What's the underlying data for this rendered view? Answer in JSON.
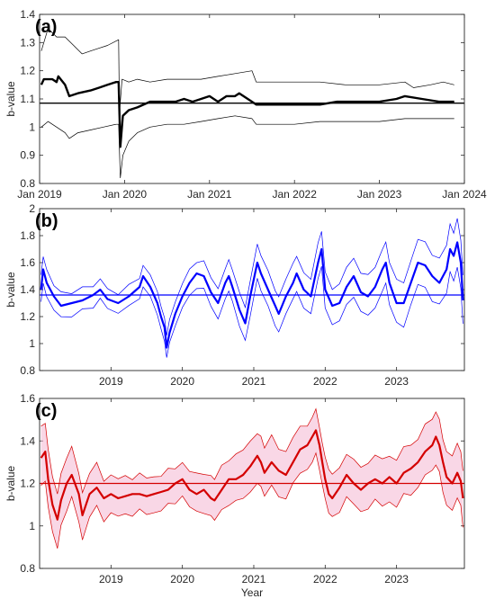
{
  "chart_data": [
    {
      "type": "line",
      "panel_label": "(a)",
      "ylabel": "b-value",
      "xlabel": "",
      "x_unit": "year",
      "xlim": [
        2019.0,
        2024.0
      ],
      "ylim": [
        0.8,
        1.4
      ],
      "y_ticks": [
        "0.8",
        "0.9",
        "1",
        "1.1",
        "1.2",
        "1.3",
        "1.4"
      ],
      "x_ticks": [
        {
          "label": "Jan 2019",
          "x": 2019.0
        },
        {
          "label": "Jan 2020",
          "x": 2020.0
        },
        {
          "label": "Jan 2021",
          "x": 2021.0
        },
        {
          "label": "Jan 2022",
          "x": 2022.0
        },
        {
          "label": "Jan 2023",
          "x": 2023.0
        },
        {
          "label": "Jan 2024",
          "x": 2024.0
        }
      ],
      "reference_line": 1.085,
      "color": "#000000",
      "series": [
        {
          "role": "upper",
          "points": [
            [
              2019.02,
              1.27
            ],
            [
              2019.1,
              1.35
            ],
            [
              2019.2,
              1.32
            ],
            [
              2019.3,
              1.32
            ],
            [
              2019.4,
              1.29
            ],
            [
              2019.5,
              1.26
            ],
            [
              2019.6,
              1.27
            ],
            [
              2019.7,
              1.28
            ],
            [
              2019.8,
              1.29
            ],
            [
              2019.93,
              1.31
            ],
            [
              2019.94,
              1.05
            ],
            [
              2019.97,
              1.17
            ],
            [
              2020.05,
              1.16
            ],
            [
              2020.15,
              1.17
            ],
            [
              2020.3,
              1.16
            ],
            [
              2020.5,
              1.17
            ],
            [
              2020.7,
              1.17
            ],
            [
              2020.9,
              1.17
            ],
            [
              2021.1,
              1.18
            ],
            [
              2021.3,
              1.19
            ],
            [
              2021.5,
              1.2
            ],
            [
              2021.55,
              1.16
            ],
            [
              2021.8,
              1.16
            ],
            [
              2022.0,
              1.16
            ],
            [
              2022.3,
              1.16
            ],
            [
              2022.6,
              1.15
            ],
            [
              2023.0,
              1.15
            ],
            [
              2023.3,
              1.16
            ],
            [
              2023.4,
              1.14
            ],
            [
              2023.6,
              1.15
            ],
            [
              2023.75,
              1.16
            ],
            [
              2023.88,
              1.15
            ]
          ]
        },
        {
          "role": "estimate",
          "points": [
            [
              2019.02,
              1.15
            ],
            [
              2019.05,
              1.17
            ],
            [
              2019.15,
              1.17
            ],
            [
              2019.2,
              1.16
            ],
            [
              2019.22,
              1.18
            ],
            [
              2019.3,
              1.15
            ],
            [
              2019.35,
              1.11
            ],
            [
              2019.45,
              1.12
            ],
            [
              2019.6,
              1.13
            ],
            [
              2019.7,
              1.14
            ],
            [
              2019.8,
              1.15
            ],
            [
              2019.9,
              1.16
            ],
            [
              2019.93,
              1.16
            ],
            [
              2019.95,
              0.93
            ],
            [
              2019.98,
              1.04
            ],
            [
              2020.05,
              1.06
            ],
            [
              2020.15,
              1.07
            ],
            [
              2020.3,
              1.09
            ],
            [
              2020.5,
              1.09
            ],
            [
              2020.6,
              1.09
            ],
            [
              2020.7,
              1.1
            ],
            [
              2020.8,
              1.09
            ],
            [
              2020.9,
              1.1
            ],
            [
              2021.0,
              1.11
            ],
            [
              2021.05,
              1.1
            ],
            [
              2021.1,
              1.09
            ],
            [
              2021.2,
              1.11
            ],
            [
              2021.3,
              1.11
            ],
            [
              2021.35,
              1.12
            ],
            [
              2021.45,
              1.1
            ],
            [
              2021.55,
              1.08
            ],
            [
              2021.6,
              1.08
            ],
            [
              2021.8,
              1.08
            ],
            [
              2022.0,
              1.08
            ],
            [
              2022.3,
              1.08
            ],
            [
              2022.5,
              1.09
            ],
            [
              2022.7,
              1.09
            ],
            [
              2023.0,
              1.09
            ],
            [
              2023.2,
              1.1
            ],
            [
              2023.3,
              1.11
            ],
            [
              2023.5,
              1.1
            ],
            [
              2023.7,
              1.09
            ],
            [
              2023.8,
              1.09
            ],
            [
              2023.88,
              1.09
            ]
          ]
        },
        {
          "role": "lower",
          "points": [
            [
              2019.02,
              1.0
            ],
            [
              2019.1,
              1.02
            ],
            [
              2019.2,
              1.0
            ],
            [
              2019.3,
              0.98
            ],
            [
              2019.35,
              0.96
            ],
            [
              2019.45,
              0.98
            ],
            [
              2019.6,
              0.99
            ],
            [
              2019.75,
              1.0
            ],
            [
              2019.9,
              1.01
            ],
            [
              2019.93,
              1.01
            ],
            [
              2019.95,
              0.82
            ],
            [
              2019.98,
              0.9
            ],
            [
              2020.05,
              0.95
            ],
            [
              2020.15,
              0.98
            ],
            [
              2020.3,
              1.0
            ],
            [
              2020.5,
              1.01
            ],
            [
              2020.7,
              1.01
            ],
            [
              2020.9,
              1.02
            ],
            [
              2021.1,
              1.03
            ],
            [
              2021.3,
              1.04
            ],
            [
              2021.5,
              1.03
            ],
            [
              2021.55,
              1.01
            ],
            [
              2021.8,
              1.01
            ],
            [
              2022.0,
              1.01
            ],
            [
              2022.3,
              1.02
            ],
            [
              2022.6,
              1.02
            ],
            [
              2023.0,
              1.02
            ],
            [
              2023.3,
              1.03
            ],
            [
              2023.6,
              1.03
            ],
            [
              2023.75,
              1.03
            ],
            [
              2023.88,
              1.03
            ]
          ]
        }
      ]
    },
    {
      "type": "line",
      "panel_label": "(b)",
      "ylabel": "b-value",
      "xlabel": "",
      "x_unit": "year",
      "xlim": [
        2018.0,
        2023.95
      ],
      "ylim": [
        0.8,
        2.0
      ],
      "y_ticks": [
        "0.8",
        "1",
        "1.2",
        "1.4",
        "1.6",
        "1.8",
        "2"
      ],
      "x_ticks": [
        {
          "label": "2019",
          "x": 2019.0
        },
        {
          "label": "2020",
          "x": 2020.0
        },
        {
          "label": "2021",
          "x": 2021.0
        },
        {
          "label": "2022",
          "x": 2022.0
        },
        {
          "label": "2023",
          "x": 2023.0
        }
      ],
      "reference_line": 1.36,
      "color": "#0000ff",
      "band_halfwidth": [
        [
          2018.0,
          0.1
        ],
        [
          2019.0,
          0.07
        ],
        [
          2020.0,
          0.09
        ],
        [
          2021.0,
          0.13
        ],
        [
          2022.0,
          0.13
        ],
        [
          2023.0,
          0.16
        ],
        [
          2023.95,
          0.18
        ]
      ],
      "estimate": [
        [
          2018.02,
          1.4
        ],
        [
          2018.05,
          1.55
        ],
        [
          2018.1,
          1.45
        ],
        [
          2018.2,
          1.35
        ],
        [
          2018.3,
          1.28
        ],
        [
          2018.45,
          1.3
        ],
        [
          2018.6,
          1.32
        ],
        [
          2018.75,
          1.36
        ],
        [
          2018.85,
          1.4
        ],
        [
          2018.95,
          1.33
        ],
        [
          2019.1,
          1.3
        ],
        [
          2019.25,
          1.35
        ],
        [
          2019.4,
          1.42
        ],
        [
          2019.45,
          1.5
        ],
        [
          2019.55,
          1.42
        ],
        [
          2019.65,
          1.3
        ],
        [
          2019.7,
          1.2
        ],
        [
          2019.75,
          1.12
        ],
        [
          2019.78,
          0.97
        ],
        [
          2019.82,
          1.08
        ],
        [
          2019.9,
          1.22
        ],
        [
          2020.0,
          1.35
        ],
        [
          2020.1,
          1.45
        ],
        [
          2020.2,
          1.52
        ],
        [
          2020.3,
          1.5
        ],
        [
          2020.4,
          1.38
        ],
        [
          2020.5,
          1.3
        ],
        [
          2020.6,
          1.45
        ],
        [
          2020.65,
          1.5
        ],
        [
          2020.7,
          1.42
        ],
        [
          2020.8,
          1.25
        ],
        [
          2020.88,
          1.15
        ],
        [
          2020.95,
          1.35
        ],
        [
          2021.05,
          1.6
        ],
        [
          2021.1,
          1.52
        ],
        [
          2021.2,
          1.4
        ],
        [
          2021.3,
          1.28
        ],
        [
          2021.35,
          1.22
        ],
        [
          2021.45,
          1.35
        ],
        [
          2021.55,
          1.45
        ],
        [
          2021.6,
          1.52
        ],
        [
          2021.7,
          1.4
        ],
        [
          2021.8,
          1.35
        ],
        [
          2021.9,
          1.6
        ],
        [
          2021.95,
          1.7
        ],
        [
          2022.0,
          1.4
        ],
        [
          2022.1,
          1.28
        ],
        [
          2022.2,
          1.3
        ],
        [
          2022.3,
          1.42
        ],
        [
          2022.4,
          1.5
        ],
        [
          2022.5,
          1.38
        ],
        [
          2022.6,
          1.35
        ],
        [
          2022.7,
          1.42
        ],
        [
          2022.8,
          1.55
        ],
        [
          2022.85,
          1.6
        ],
        [
          2022.9,
          1.45
        ],
        [
          2023.0,
          1.3
        ],
        [
          2023.1,
          1.3
        ],
        [
          2023.2,
          1.45
        ],
        [
          2023.3,
          1.6
        ],
        [
          2023.4,
          1.58
        ],
        [
          2023.5,
          1.5
        ],
        [
          2023.6,
          1.45
        ],
        [
          2023.7,
          1.55
        ],
        [
          2023.75,
          1.7
        ],
        [
          2023.8,
          1.65
        ],
        [
          2023.85,
          1.75
        ],
        [
          2023.9,
          1.6
        ],
        [
          2023.93,
          1.32
        ]
      ]
    },
    {
      "type": "line",
      "panel_label": "(c)",
      "ylabel": "b-value",
      "xlabel": "Year",
      "x_unit": "year",
      "xlim": [
        2018.0,
        2023.95
      ],
      "ylim": [
        0.8,
        1.6
      ],
      "y_ticks": [
        "0.8",
        "1",
        "1.2",
        "1.4",
        "1.6"
      ],
      "x_ticks": [
        {
          "label": "2019",
          "x": 2019.0
        },
        {
          "label": "2020",
          "x": 2020.0
        },
        {
          "label": "2021",
          "x": 2021.0
        },
        {
          "label": "2022",
          "x": 2022.0
        },
        {
          "label": "2023",
          "x": 2023.0
        }
      ],
      "reference_line": 1.2,
      "color": "#d40000",
      "band_color": "#f4b6d2",
      "band_halfwidth": [
        [
          2018.0,
          0.14
        ],
        [
          2019.0,
          0.09
        ],
        [
          2020.0,
          0.08
        ],
        [
          2021.0,
          0.12
        ],
        [
          2022.0,
          0.1
        ],
        [
          2023.0,
          0.11
        ],
        [
          2023.95,
          0.13
        ]
      ],
      "estimate": [
        [
          2018.02,
          1.32
        ],
        [
          2018.08,
          1.35
        ],
        [
          2018.12,
          1.22
        ],
        [
          2018.18,
          1.1
        ],
        [
          2018.25,
          1.03
        ],
        [
          2018.3,
          1.12
        ],
        [
          2018.38,
          1.2
        ],
        [
          2018.45,
          1.24
        ],
        [
          2018.55,
          1.15
        ],
        [
          2018.6,
          1.05
        ],
        [
          2018.7,
          1.15
        ],
        [
          2018.8,
          1.18
        ],
        [
          2018.9,
          1.13
        ],
        [
          2019.0,
          1.15
        ],
        [
          2019.1,
          1.13
        ],
        [
          2019.2,
          1.14
        ],
        [
          2019.3,
          1.15
        ],
        [
          2019.4,
          1.15
        ],
        [
          2019.5,
          1.14
        ],
        [
          2019.6,
          1.15
        ],
        [
          2019.7,
          1.16
        ],
        [
          2019.8,
          1.17
        ],
        [
          2019.9,
          1.2
        ],
        [
          2020.0,
          1.22
        ],
        [
          2020.1,
          1.17
        ],
        [
          2020.2,
          1.15
        ],
        [
          2020.3,
          1.17
        ],
        [
          2020.4,
          1.13
        ],
        [
          2020.45,
          1.12
        ],
        [
          2020.55,
          1.17
        ],
        [
          2020.65,
          1.22
        ],
        [
          2020.75,
          1.22
        ],
        [
          2020.85,
          1.24
        ],
        [
          2020.95,
          1.28
        ],
        [
          2021.05,
          1.33
        ],
        [
          2021.1,
          1.3
        ],
        [
          2021.15,
          1.25
        ],
        [
          2021.25,
          1.3
        ],
        [
          2021.35,
          1.26
        ],
        [
          2021.45,
          1.24
        ],
        [
          2021.55,
          1.3
        ],
        [
          2021.65,
          1.36
        ],
        [
          2021.75,
          1.38
        ],
        [
          2021.82,
          1.42
        ],
        [
          2021.87,
          1.45
        ],
        [
          2021.92,
          1.38
        ],
        [
          2021.96,
          1.3
        ],
        [
          2022.0,
          1.22
        ],
        [
          2022.05,
          1.15
        ],
        [
          2022.1,
          1.13
        ],
        [
          2022.2,
          1.18
        ],
        [
          2022.3,
          1.24
        ],
        [
          2022.4,
          1.2
        ],
        [
          2022.5,
          1.17
        ],
        [
          2022.6,
          1.2
        ],
        [
          2022.7,
          1.22
        ],
        [
          2022.8,
          1.2
        ],
        [
          2022.9,
          1.23
        ],
        [
          2023.0,
          1.2
        ],
        [
          2023.1,
          1.25
        ],
        [
          2023.2,
          1.27
        ],
        [
          2023.3,
          1.3
        ],
        [
          2023.4,
          1.35
        ],
        [
          2023.5,
          1.38
        ],
        [
          2023.55,
          1.42
        ],
        [
          2023.6,
          1.38
        ],
        [
          2023.65,
          1.3
        ],
        [
          2023.7,
          1.23
        ],
        [
          2023.78,
          1.2
        ],
        [
          2023.85,
          1.25
        ],
        [
          2023.9,
          1.21
        ],
        [
          2023.93,
          1.13
        ]
      ]
    }
  ]
}
